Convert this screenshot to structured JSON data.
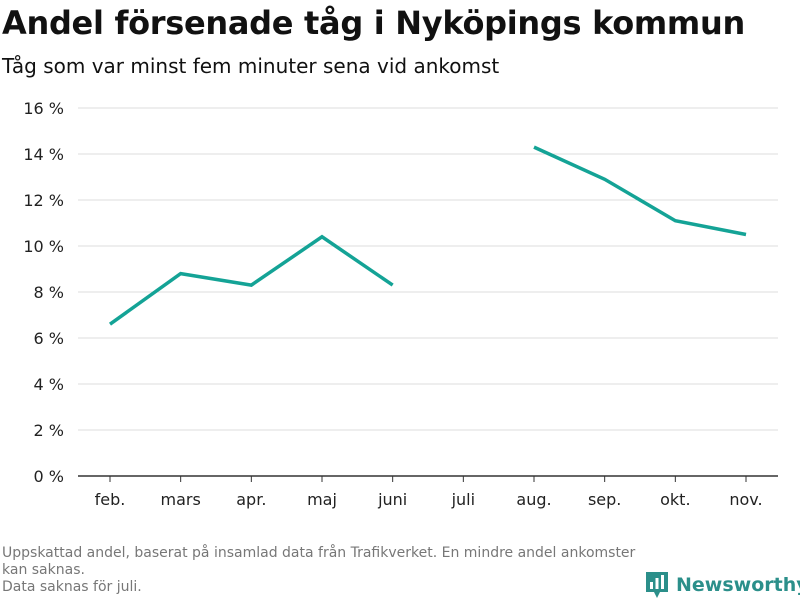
{
  "header": {
    "title": "Andel försenade tåg i Nyköpings kommun",
    "subtitle": "Tåg som var minst fem minuter sena vid ankomst"
  },
  "footnote": {
    "line1": "Uppskattad andel, baserat på insamlad data från Trafikverket. En mindre andel ankomster kan saknas.",
    "line2": "Data saknas för juli."
  },
  "brand": {
    "name": "Newsworthy",
    "icon": "newsworthy-logo-icon",
    "color": "#2b8f8a"
  },
  "chart_data": {
    "type": "line",
    "title": "Andel försenade tåg i Nyköpings kommun",
    "subtitle": "Tåg som var minst fem minuter sena vid ankomst",
    "categories": [
      "feb.",
      "mars",
      "apr.",
      "maj",
      "juni",
      "juli",
      "aug.",
      "sep.",
      "okt.",
      "nov."
    ],
    "series": [
      {
        "values": [
          6.6,
          8.8,
          8.3,
          10.4,
          8.3,
          null,
          14.3,
          12.9,
          11.1,
          10.5
        ],
        "color": "#14a396"
      }
    ],
    "ylim": [
      0,
      16
    ],
    "yticks": [
      0,
      2,
      4,
      6,
      8,
      10,
      12,
      14,
      16
    ],
    "ytick_labels": [
      "0 %",
      "2 %",
      "4 %",
      "6 %",
      "8 %",
      "10 %",
      "12 %",
      "14 %",
      "16 %"
    ],
    "grid": true,
    "xlabel": "",
    "ylabel": ""
  }
}
